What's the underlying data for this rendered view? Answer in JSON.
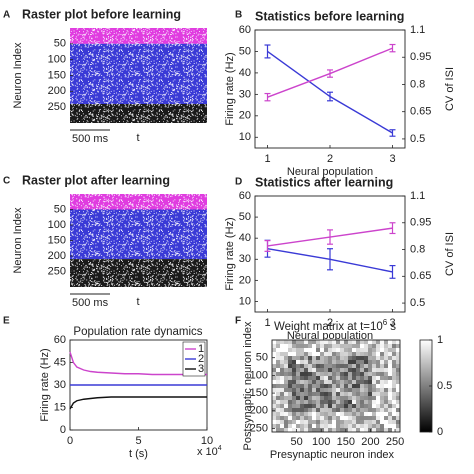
{
  "chart_data": [
    {
      "type": "raster",
      "panel_label": "A",
      "title": "Raster plot before learning",
      "ylabel": "Neuron Index",
      "ylim": [
        300,
        0
      ],
      "yticks": [
        50,
        100,
        150,
        200,
        250
      ],
      "bands": [
        {
          "color": "#e03ce0",
          "range": [
            0,
            50
          ]
        },
        {
          "color": "#3a3ad6",
          "range": [
            50,
            240
          ]
        },
        {
          "color": "#1a1a1a",
          "range": [
            240,
            300
          ]
        }
      ],
      "scale_bar_label": "500 ms",
      "xlabel": "t"
    },
    {
      "type": "line",
      "panel_label": "B",
      "title": "Statistics before learning",
      "xlabel": "Neural population",
      "ylabel": "Firing rate (Hz)",
      "y2label": "CV of ISI",
      "x": [
        1,
        2,
        3
      ],
      "xlim": [
        0.8,
        3.2
      ],
      "xticks": [
        1,
        2,
        3
      ],
      "ylim": [
        5,
        60
      ],
      "yticks": [
        10,
        20,
        30,
        40,
        50,
        60
      ],
      "y2lim": [
        0.45,
        1.1
      ],
      "y2ticks": [
        0.5,
        0.65,
        0.8,
        0.95,
        1.1
      ],
      "series": [
        {
          "color": "#3a3ad6",
          "values": [
            50,
            29,
            12
          ],
          "errors": [
            3,
            2,
            1.5
          ],
          "axis": "y"
        },
        {
          "color": "#cc44cc",
          "values": [
            0.73,
            0.86,
            1.0
          ],
          "errors": [
            0.02,
            0.02,
            0.02
          ],
          "axis": "y2"
        }
      ]
    },
    {
      "type": "raster",
      "panel_label": "C",
      "title": "Raster plot after learning",
      "ylabel": "Neuron Index",
      "ylim": [
        300,
        0
      ],
      "yticks": [
        50,
        100,
        150,
        200,
        250
      ],
      "bands": [
        {
          "color": "#e03ce0",
          "range": [
            0,
            50
          ]
        },
        {
          "color": "#3a3ad6",
          "range": [
            50,
            210
          ]
        },
        {
          "color": "#1a1a1a",
          "range": [
            210,
            300
          ]
        }
      ],
      "scale_bar_label": "500 ms",
      "xlabel": "t"
    },
    {
      "type": "line",
      "panel_label": "D",
      "title": "Statistics after learning",
      "xlabel": "Neural population",
      "ylabel": "Firing rate (Hz)",
      "y2label": "CV of ISI",
      "x": [
        1,
        2,
        3
      ],
      "xlim": [
        0.8,
        3.2
      ],
      "xticks": [
        1,
        2,
        3
      ],
      "ylim": [
        5,
        60
      ],
      "yticks": [
        10,
        20,
        30,
        40,
        50,
        60
      ],
      "y2lim": [
        0.45,
        1.1
      ],
      "y2ticks": [
        0.5,
        0.65,
        0.8,
        0.95,
        1.1
      ],
      "series": [
        {
          "color": "#3a3ad6",
          "values": [
            35,
            30,
            24
          ],
          "errors": [
            4,
            5,
            3
          ],
          "axis": "y"
        },
        {
          "color": "#cc44cc",
          "values": [
            0.82,
            0.87,
            0.92
          ],
          "errors": [
            0.03,
            0.04,
            0.03
          ],
          "axis": "y2"
        }
      ]
    },
    {
      "type": "line",
      "panel_label": "E",
      "title": "Population rate dynamics",
      "xlabel": "t (s)",
      "x_scale_label": "x 10",
      "x_scale_exponent": "4",
      "ylabel": "Firing rate (Hz)",
      "x": [
        0,
        0.25,
        0.5,
        1,
        1.5,
        2,
        3,
        4,
        5,
        6,
        7,
        8,
        9,
        10
      ],
      "xlim": [
        0,
        10
      ],
      "xticks": [
        0,
        5,
        10
      ],
      "ylim": [
        0,
        60
      ],
      "yticks": [
        0,
        15,
        30,
        45,
        60
      ],
      "legend": "upper right",
      "series": [
        {
          "name": "1",
          "color": "#cc44cc",
          "values": [
            52,
            45,
            42,
            40,
            39,
            38.5,
            38,
            37.5,
            37.5,
            37,
            37,
            37,
            37,
            37
          ]
        },
        {
          "name": "2",
          "color": "#3a3ad6",
          "values": [
            30,
            30,
            30,
            30,
            30,
            30,
            30,
            30,
            30,
            30,
            30,
            30,
            30,
            30
          ]
        },
        {
          "name": "3",
          "color": "#111111",
          "values": [
            14,
            18,
            19.5,
            20.5,
            21,
            21.5,
            22,
            22,
            22,
            22,
            22,
            22,
            22,
            22
          ]
        }
      ]
    },
    {
      "type": "heatmap",
      "panel_label": "F",
      "title": [
        "Weight matrix at t=10",
        "6",
        "s"
      ],
      "xlabel": "Presynaptic neuron index",
      "ylabel": "Postsynaptic neuron index",
      "xlim": [
        0,
        260
      ],
      "xticks": [
        50,
        100,
        150,
        200,
        250
      ],
      "ylim": [
        260,
        0
      ],
      "yticks": [
        50,
        100,
        150,
        200,
        250
      ],
      "colorbar_lim": [
        0,
        1
      ],
      "colorbar_ticks": [
        0,
        0.5,
        1
      ]
    }
  ]
}
